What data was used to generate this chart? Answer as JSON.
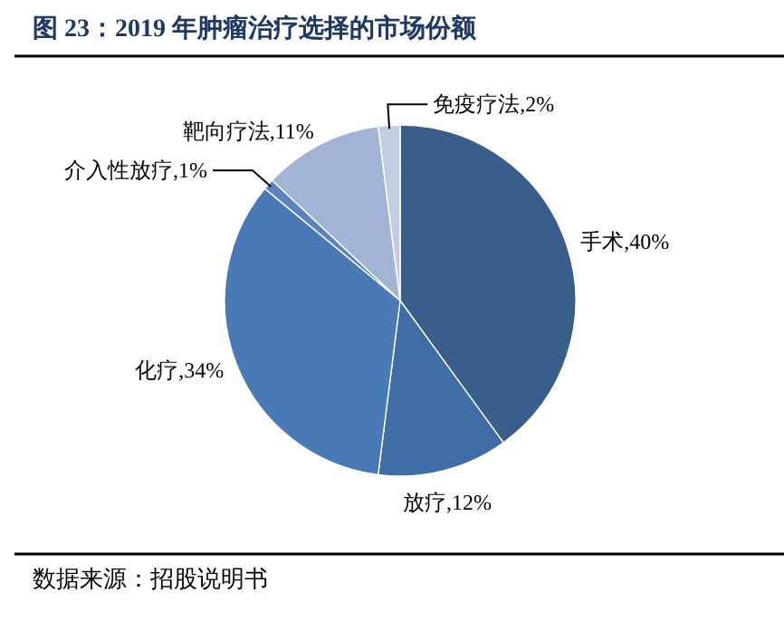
{
  "chart_data": {
    "type": "pie",
    "title": "图 23：2019 年肿瘤治疗选择的市场份额",
    "categories": [
      "手术",
      "放疗",
      "化疗",
      "介入性放疗",
      "靶向疗法",
      "免疫疗法"
    ],
    "value_labels": [
      "40%",
      "12%",
      "34%",
      "1%",
      "11%",
      "2%"
    ],
    "values": [
      40,
      12,
      34,
      1,
      11,
      2
    ],
    "colors": [
      "#395e8c",
      "#3f6ea6",
      "#4a7ab5",
      "#5b83bf",
      "#a2b4d6",
      "#c3cde2"
    ],
    "annotations": [
      "数据来源：招股说明书"
    ]
  }
}
